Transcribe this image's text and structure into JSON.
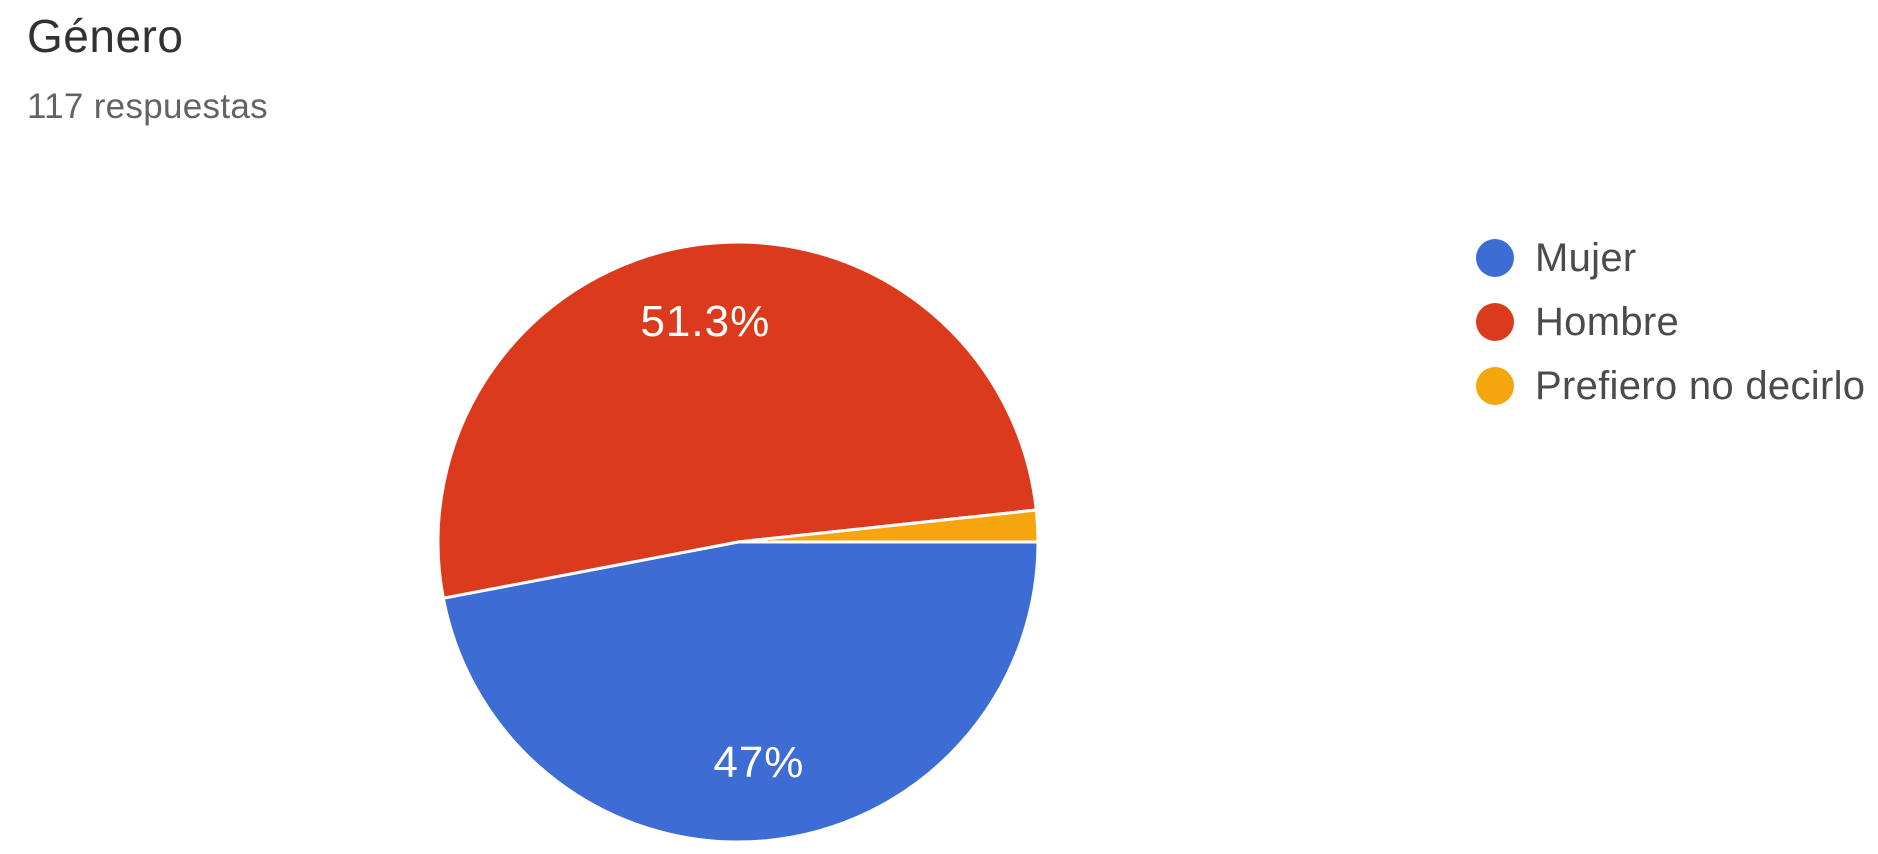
{
  "header": {
    "title": "Género",
    "subtitle": "117 respuestas"
  },
  "chart_data": {
    "type": "pie",
    "title": "Género",
    "subtitle": "117 respuestas",
    "total_responses": 117,
    "start_angle_deg": 90,
    "direction": "clockwise",
    "legend_position": "right",
    "slices": [
      {
        "label": "Mujer",
        "percent": 47,
        "displayed_label": "47%",
        "color": "#3d6cd5"
      },
      {
        "label": "Hombre",
        "percent": 51.3,
        "displayed_label": "51.3%",
        "color": "#db3b1c"
      },
      {
        "label": "Prefiero no decirlo",
        "percent": 1.7,
        "displayed_label": "",
        "color": "#f5a50e"
      }
    ]
  },
  "legend": {
    "items": [
      {
        "label": "Mujer",
        "color": "#3d6cd5"
      },
      {
        "label": "Hombre",
        "color": "#db3b1c"
      },
      {
        "label": "Prefiero no decirlo",
        "color": "#f5a50e"
      }
    ]
  }
}
